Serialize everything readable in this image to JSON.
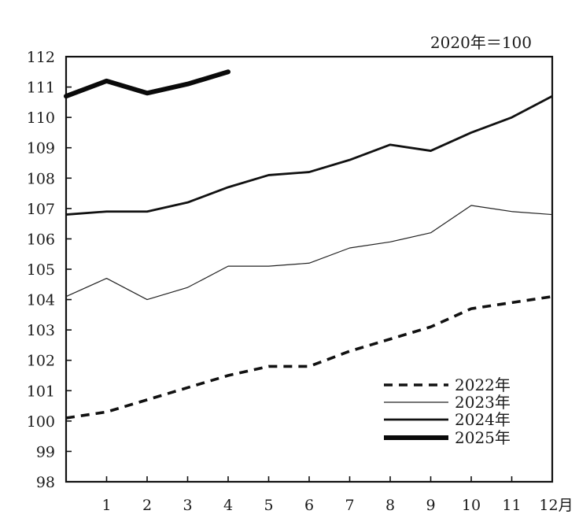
{
  "chart_data": {
    "type": "line",
    "unit_note": "2020年＝100",
    "x": [
      0,
      1,
      2,
      3,
      4,
      5,
      6,
      7,
      8,
      9,
      10,
      11,
      12
    ],
    "x_tick_labels": [
      "1",
      "2",
      "3",
      "4",
      "5",
      "6",
      "7",
      "8",
      "9",
      "10",
      "11",
      "12月"
    ],
    "x_tick_values": [
      1,
      2,
      3,
      4,
      5,
      6,
      7,
      8,
      9,
      10,
      11,
      12
    ],
    "xlim": [
      0,
      12
    ],
    "ylim": [
      98,
      112
    ],
    "y_tick_values": [
      98,
      99,
      100,
      101,
      102,
      103,
      104,
      105,
      106,
      107,
      108,
      109,
      110,
      111,
      112
    ],
    "y_tick_labels": [
      "98",
      "99",
      "100",
      "101",
      "102",
      "103",
      "104",
      "105",
      "106",
      "107",
      "108",
      "109",
      "110",
      "111",
      "112"
    ],
    "grid": false,
    "legend_position": "bottom-right",
    "series": [
      {
        "name": "2022年",
        "style": "dashed",
        "x": [
          0,
          1,
          2,
          3,
          4,
          5,
          6,
          7,
          8,
          9,
          10,
          11,
          12
        ],
        "values": [
          100.1,
          100.3,
          100.7,
          101.1,
          101.5,
          101.8,
          101.8,
          102.3,
          102.7,
          103.1,
          103.7,
          103.9,
          104.1
        ]
      },
      {
        "name": "2023年",
        "style": "thin",
        "x": [
          0,
          1,
          2,
          3,
          4,
          5,
          6,
          7,
          8,
          9,
          10,
          11,
          12
        ],
        "values": [
          104.1,
          104.7,
          104.0,
          104.4,
          105.1,
          105.1,
          105.2,
          105.7,
          105.9,
          106.2,
          107.1,
          106.9,
          106.8
        ]
      },
      {
        "name": "2024年",
        "style": "medium",
        "x": [
          0,
          1,
          2,
          3,
          4,
          5,
          6,
          7,
          8,
          9,
          10,
          11,
          12
        ],
        "values": [
          106.8,
          106.9,
          106.9,
          107.2,
          107.7,
          108.1,
          108.2,
          108.6,
          109.1,
          108.9,
          109.5,
          110.0,
          110.7
        ]
      },
      {
        "name": "2025年",
        "style": "thick",
        "x": [
          0,
          1,
          2,
          3,
          4
        ],
        "values": [
          110.7,
          111.2,
          110.8,
          111.1,
          111.5
        ]
      }
    ]
  }
}
